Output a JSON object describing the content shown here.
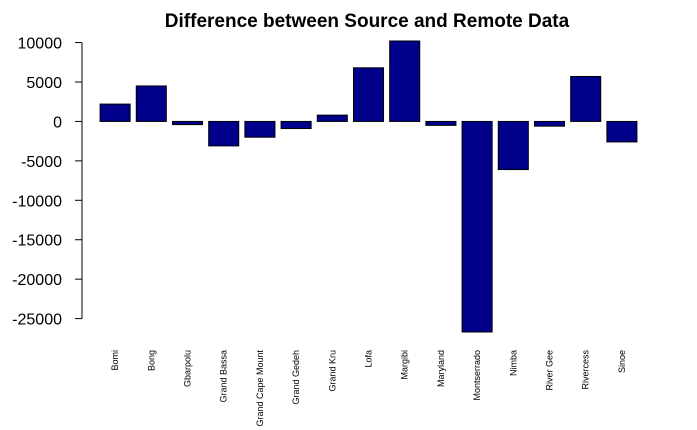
{
  "chart_data": {
    "type": "bar",
    "title": "Difference between Source and Remote Data",
    "xlabel": "",
    "ylabel": "",
    "categories": [
      "Bomi",
      "Bong",
      "Gbarpolu",
      "Grand Bassa",
      "Grand Cape Mount",
      "Grand Gedeh",
      "Grand Kru",
      "Lofa",
      "Margibi",
      "Maryland",
      "Montserrado",
      "Nimba",
      "River Gee",
      "Rivercess",
      "Sinoe"
    ],
    "values": [
      2200,
      4500,
      -400,
      -3100,
      -2000,
      -900,
      800,
      6800,
      10200,
      -500,
      -26700,
      -6100,
      -600,
      5700,
      -2600
    ],
    "ylim": [
      -26700,
      10200
    ],
    "y_ticks": [
      10000,
      5000,
      0,
      -5000,
      -10000,
      -15000,
      -20000,
      -25000
    ],
    "y_tick_labels": [
      "10000",
      "5000",
      "0",
      "-5000",
      "-10000",
      "-15000",
      "-20000",
      "-25000"
    ],
    "bar_color": "#00008b",
    "grid": false
  }
}
